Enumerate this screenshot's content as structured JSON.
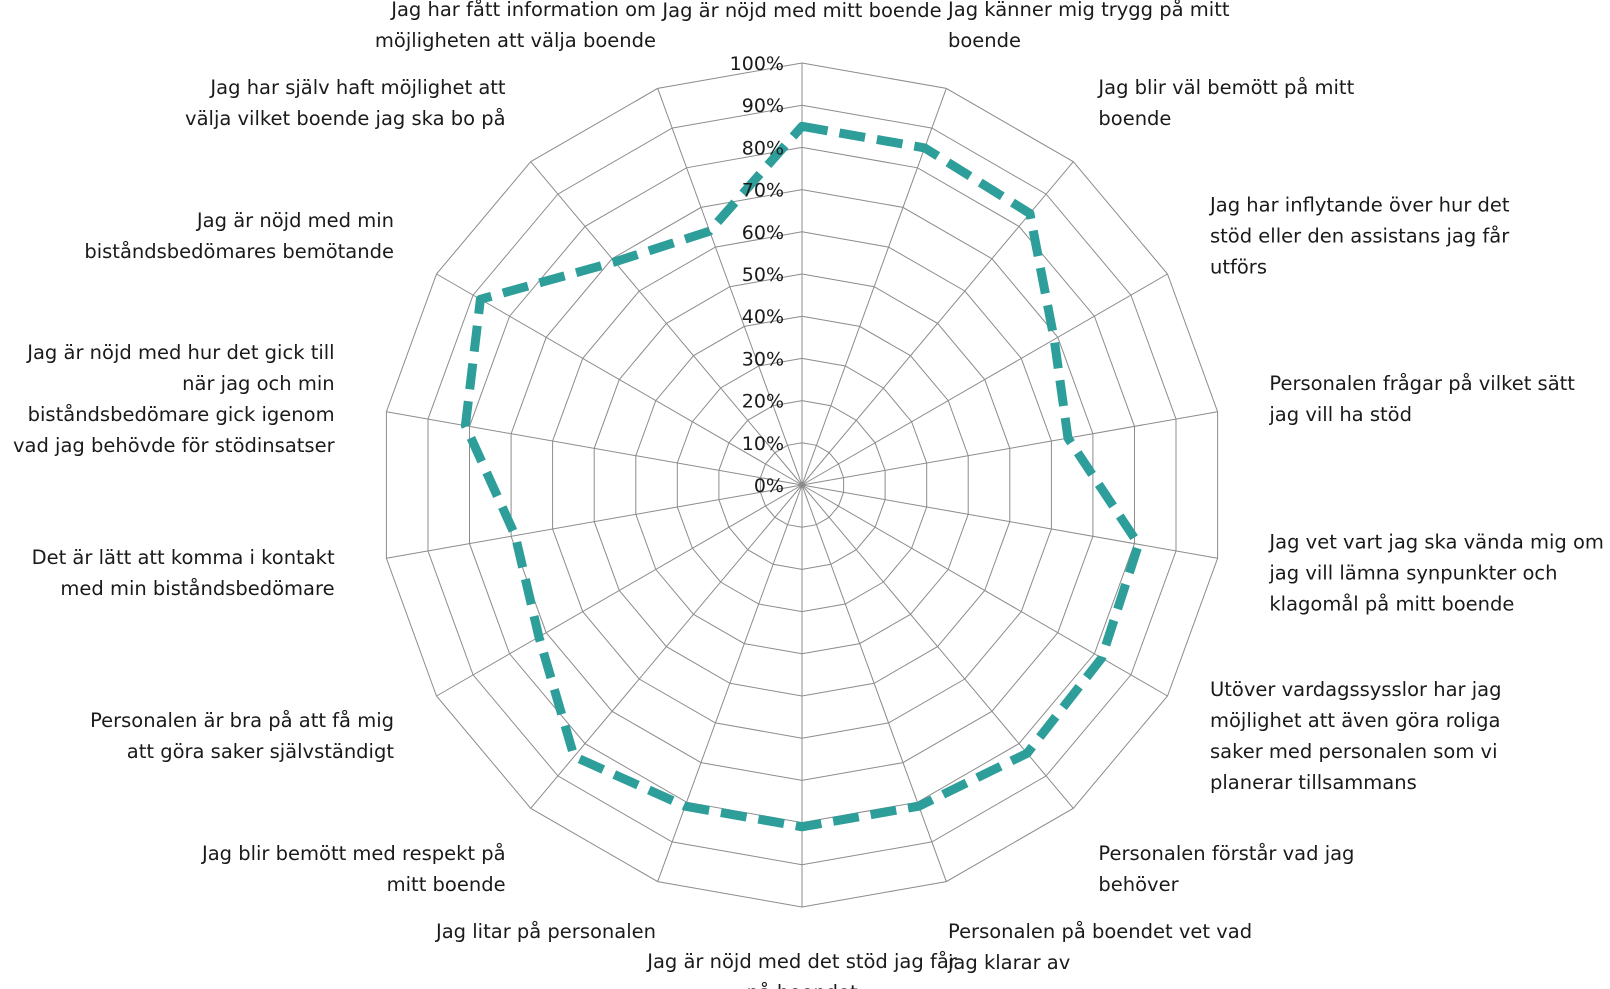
{
  "chart_data": {
    "type": "radar",
    "title": "",
    "axis": {
      "min": 0,
      "max": 1,
      "step": 0.1,
      "grid": true
    },
    "ticks": [
      "0%",
      "10%",
      "20%",
      "30%",
      "40%",
      "50%",
      "60%",
      "70%",
      "80%",
      "90%",
      "100%"
    ],
    "categories": [
      [
        "Jag är nöjd med mitt boende"
      ],
      [
        "Jag känner mig trygg på mitt",
        "boende"
      ],
      [
        "Jag blir väl bemött på mitt",
        "boende"
      ],
      [
        "Jag har inflytande över hur det",
        "stöd eller den assistans jag får",
        "utförs"
      ],
      [
        "Personalen frågar på vilket sätt",
        "jag vill ha stöd"
      ],
      [
        "Jag vet vart jag ska vända mig om",
        "jag vill lämna synpunkter och",
        "klagomål på mitt boende"
      ],
      [
        "Utöver vardagssysslor har jag",
        "möjlighet att även göra roliga",
        "saker med personalen som vi",
        "planerar tillsammans"
      ],
      [
        "Personalen förstår vad jag",
        "behöver"
      ],
      [
        "Personalen på boendet vet vad",
        "jag klarar av"
      ],
      [
        "Jag är nöjd med det stöd jag får",
        "på boendet"
      ],
      [
        "Jag litar på personalen"
      ],
      [
        "Jag blir bemött med respekt på",
        "mitt boende"
      ],
      [
        "Personalen är bra på att få mig",
        "att göra saker självständigt"
      ],
      [
        "Det är lätt att komma i kontakt",
        "med min biståndsbedömare"
      ],
      [
        "Jag är nöjd med hur det gick till",
        "när jag och min",
        "biståndsbedömare gick igenom",
        "vad jag behövde för stödinsatser"
      ],
      [
        "Jag är nöjd med min",
        "biståndsbedömares bemötande"
      ],
      [
        "Jag har själv haft möjlighet att",
        "välja vilket boende jag ska bo på"
      ],
      [
        "Jag har fått information om",
        "möjligheten att välja boende"
      ]
    ],
    "series": [
      {
        "color": "#2e9e9a",
        "values": [
          0.85,
          0.85,
          0.84,
          0.69,
          0.64,
          0.81,
          0.82,
          0.83,
          0.81,
          0.81,
          0.81,
          0.84,
          0.72,
          0.69,
          0.81,
          0.88,
          0.69,
          0.64
        ]
      }
    ]
  }
}
